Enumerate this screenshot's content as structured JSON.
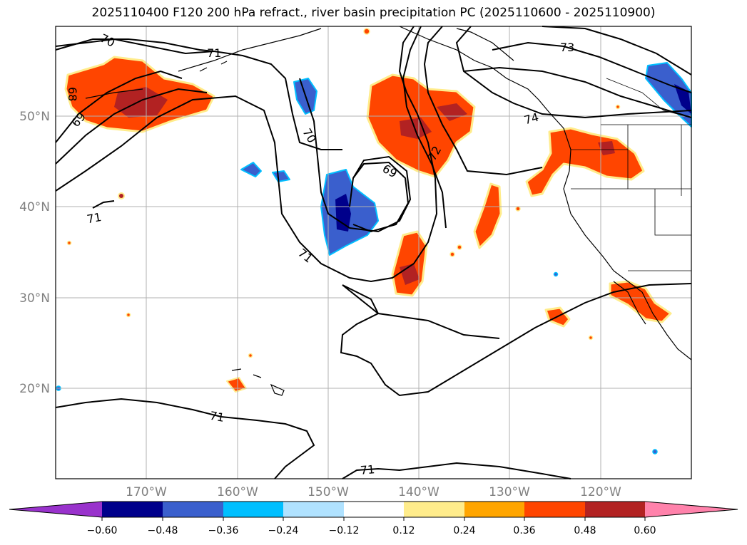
{
  "title": "2025110400 F120 200 hPa refract., river basin precipitation PC (2025110600 - 2025110900)",
  "map": {
    "lat_ticks": [
      {
        "label": "50°N",
        "lat": 50
      },
      {
        "label": "40°N",
        "lat": 40
      },
      {
        "label": "30°N",
        "lat": 30
      },
      {
        "label": "20°N",
        "lat": 20
      }
    ],
    "lon_ticks": [
      {
        "label": "170°W",
        "lon": -170
      },
      {
        "label": "160°W",
        "lon": -160
      },
      {
        "label": "150°W",
        "lon": -150
      },
      {
        "label": "140°W",
        "lon": -140
      },
      {
        "label": "130°W",
        "lon": -130
      },
      {
        "label": "120°W",
        "lon": -120
      }
    ],
    "contour_labels": [
      "70",
      "71",
      "73",
      "68",
      "69",
      "70",
      "69",
      "72",
      "74",
      "71",
      "71",
      "71",
      "71"
    ]
  },
  "colorbar": {
    "ticks": [
      "−0.60",
      "−0.48",
      "−0.36",
      "−0.24",
      "−0.12",
      "0.12",
      "0.24",
      "0.36",
      "0.48",
      "0.60"
    ],
    "colors": [
      "#9932cc",
      "#00008b",
      "#3a5fcd",
      "#00bfff",
      "#b0e2ff",
      "#ffffff",
      "#ffec8b",
      "#ffa500",
      "#ff4500",
      "#b22222",
      "#ff82ab"
    ]
  }
}
